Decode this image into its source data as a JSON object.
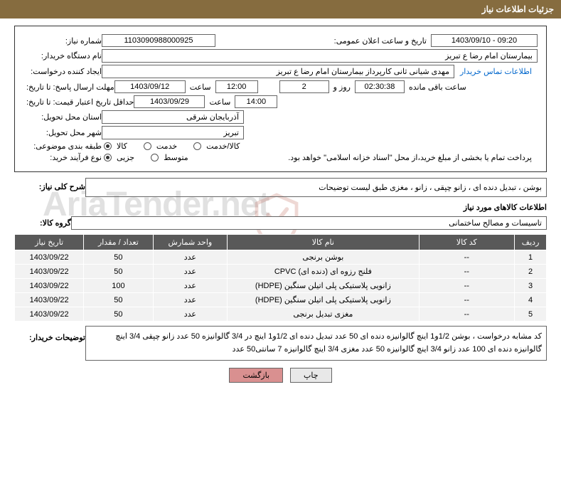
{
  "header_title": "جزئیات اطلاعات نیاز",
  "watermark_text": "AriaTender.net",
  "top": {
    "need_number_label": "شماره نیاز:",
    "need_number": "1103090988000925",
    "announce_date_label": "تاریخ و ساعت اعلان عمومی:",
    "announce_date": "1403/09/10 - 09:20",
    "buyer_org_label": "نام دستگاه خریدار:",
    "buyer_org": "بیمارستان امام رضا  ع  تبریز",
    "requester_label": "ایجاد کننده درخواست:",
    "requester": "مهدی شیانی ثانی کارپرداز بیمارستان امام رضا  ع  تبریز",
    "contact_link": "اطلاعات تماس خریدار",
    "deadline_reply_label": "مهلت ارسال پاسخ: تا تاریخ:",
    "deadline_reply_date": "1403/09/12",
    "time_label": "ساعت",
    "deadline_reply_time": "12:00",
    "remaining_days": "2",
    "days_and_label": "روز و",
    "remaining_time": "02:30:38",
    "remaining_label": "ساعت باقی مانده",
    "min_validity_label": "حداقل تاریخ اعتبار قیمت: تا تاریخ:",
    "min_validity_date": "1403/09/29",
    "min_validity_time": "14:00",
    "province_label": "استان محل تحویل:",
    "province": "آذربایجان شرقی",
    "city_label": "شهر محل تحویل:",
    "city": "تبریز",
    "category_label": "طبقه بندی موضوعی:",
    "cat_goods": "کالا",
    "cat_service": "خدمت",
    "cat_both": "کالا/خدمت",
    "purchase_type_label": "نوع فرآیند خرید:",
    "pt_partial": "جزیی",
    "pt_medium": "متوسط",
    "purchase_note": "پرداخت تمام یا بخشی از مبلغ خرید،از محل \"اسناد خزانه اسلامی\" خواهد بود."
  },
  "general": {
    "title_label": "شرح کلی نیاز:",
    "description": "بوشن ، تبدیل دنده ای ، زانو چپقی ، زانو ، مغزی طبق لیست توضیحات"
  },
  "items_section_title": "اطلاعات کالاهای مورد نیاز",
  "group": {
    "label": "گروه کالا:",
    "value": "تاسیسات و مصالح ساختمانی"
  },
  "table": {
    "columns": [
      "ردیف",
      "کد کالا",
      "نام کالا",
      "واحد شمارش",
      "تعداد / مقدار",
      "تاریخ نیاز"
    ],
    "col_widths": [
      "6%",
      "18%",
      "36%",
      "14%",
      "13%",
      "13%"
    ],
    "rows": [
      [
        "1",
        "--",
        "بوشن برنجی",
        "عدد",
        "50",
        "1403/09/22"
      ],
      [
        "2",
        "--",
        "فلنج رزوه ای (دنده ای) CPVC",
        "عدد",
        "50",
        "1403/09/22"
      ],
      [
        "3",
        "--",
        "زانویی پلاستیکی پلی اتیلن سنگین (HDPE)",
        "عدد",
        "100",
        "1403/09/22"
      ],
      [
        "4",
        "--",
        "زانویی پلاستیکی پلی اتیلن سنگین (HDPE)",
        "عدد",
        "50",
        "1403/09/22"
      ],
      [
        "5",
        "--",
        "مغزی تبدیل برنجی",
        "عدد",
        "50",
        "1403/09/22"
      ]
    ]
  },
  "buyer_desc": {
    "label": "توضیحات خریدار:",
    "text": "کد مشابه درخواست ، بوشن 1/2و1 اینچ گالوانیزه دنده ای 50 عدد تبدیل دنده ای 1/2و1 اینچ در 3/4 گالوانیزه 50 عدد زانو چپقی 3/4 اینچ گالوانیزه دنده ای 100 عدد زانو 3/4 اینچ گالوانیزه 50 عدد مغزی 3/4 اینچ گالوانیزه 7 سانتی50 عدد"
  },
  "buttons": {
    "print": "چاپ",
    "back": "بازگشت"
  },
  "colors": {
    "header_bg": "#866c3f",
    "th_bg": "#595959",
    "td_bg": "#f2f2f2",
    "link": "#0066cc",
    "btn_back": "#d99090"
  }
}
